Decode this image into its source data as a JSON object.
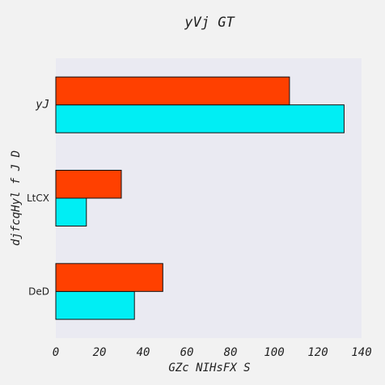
{
  "chart_data": {
    "type": "bar",
    "orientation": "horizontal",
    "title": "yVj GT",
    "xlabel": "GZc NIHsFX S",
    "ylabel": "djfcqHyl f J D",
    "categories": [
      "DeD",
      "LtCX",
      "yJ"
    ],
    "series": [
      {
        "values": [
          36,
          14,
          132
        ]
      },
      {
        "values": [
          49,
          30,
          107
        ]
      }
    ],
    "xlim": [
      0,
      140
    ],
    "xticks": [
      0,
      20,
      40,
      60,
      80,
      100,
      120,
      140
    ],
    "grid": false,
    "legend": "none",
    "colors": {
      "series_0": "#00eef4",
      "series_1": "#ff4000",
      "plot_bg": "#eaeaf2",
      "page_bg": "#f2f2f2",
      "bar_edge": "#111111",
      "text": "#222222"
    }
  }
}
